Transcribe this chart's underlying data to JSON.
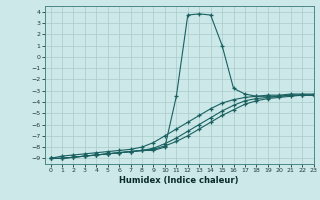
{
  "xlabel": "Humidex (Indice chaleur)",
  "bg_color": "#cce8e8",
  "grid_color": "#aacccc",
  "line_color": "#1a6060",
  "xlim": [
    -0.5,
    23
  ],
  "ylim": [
    -9.5,
    4.5
  ],
  "xticks": [
    0,
    1,
    2,
    3,
    4,
    5,
    6,
    7,
    8,
    9,
    10,
    11,
    12,
    13,
    14,
    15,
    16,
    17,
    18,
    19,
    20,
    21,
    22,
    23
  ],
  "yticks": [
    4,
    3,
    2,
    1,
    0,
    -1,
    -2,
    -3,
    -4,
    -5,
    -6,
    -7,
    -8,
    -9
  ],
  "line1_x": [
    0,
    1,
    2,
    3,
    4,
    5,
    6,
    7,
    8,
    9,
    10,
    11,
    12,
    13,
    14,
    15,
    16,
    17,
    18,
    19,
    20,
    21,
    22,
    23
  ],
  "line1_y": [
    -9.0,
    -9.0,
    -8.9,
    -8.8,
    -8.7,
    -8.6,
    -8.5,
    -8.4,
    -8.3,
    -8.3,
    -8.0,
    -3.5,
    3.7,
    3.8,
    3.7,
    1.0,
    -2.8,
    -3.3,
    -3.5,
    -3.5,
    -3.5,
    -3.4,
    -3.4,
    -3.4
  ],
  "line2_x": [
    0,
    1,
    2,
    3,
    4,
    5,
    6,
    7,
    8,
    9,
    10,
    11,
    12,
    13,
    14,
    15,
    16,
    17,
    18,
    19,
    20,
    21,
    22,
    23
  ],
  "line2_y": [
    -9.0,
    -9.0,
    -8.9,
    -8.8,
    -8.7,
    -8.6,
    -8.5,
    -8.4,
    -8.3,
    -8.2,
    -7.9,
    -7.5,
    -7.0,
    -6.4,
    -5.8,
    -5.2,
    -4.7,
    -4.2,
    -3.9,
    -3.7,
    -3.6,
    -3.5,
    -3.4,
    -3.4
  ],
  "line3_x": [
    0,
    1,
    2,
    3,
    4,
    5,
    6,
    7,
    8,
    9,
    10,
    11,
    12,
    13,
    14,
    15,
    16,
    17,
    18,
    19,
    20,
    21,
    22,
    23
  ],
  "line3_y": [
    -9.0,
    -9.0,
    -8.9,
    -8.8,
    -8.7,
    -8.6,
    -8.5,
    -8.4,
    -8.3,
    -8.1,
    -7.7,
    -7.2,
    -6.6,
    -6.0,
    -5.4,
    -4.8,
    -4.3,
    -3.9,
    -3.7,
    -3.6,
    -3.5,
    -3.4,
    -3.4,
    -3.4
  ],
  "line4_x": [
    0,
    1,
    2,
    3,
    4,
    5,
    6,
    7,
    8,
    9,
    10,
    11,
    12,
    13,
    14,
    15,
    16,
    17,
    18,
    19,
    20,
    21,
    22,
    23
  ],
  "line4_y": [
    -9.0,
    -8.8,
    -8.7,
    -8.6,
    -8.5,
    -8.4,
    -8.3,
    -8.2,
    -8.0,
    -7.6,
    -7.0,
    -6.4,
    -5.8,
    -5.2,
    -4.6,
    -4.1,
    -3.8,
    -3.6,
    -3.5,
    -3.4,
    -3.4,
    -3.3,
    -3.3,
    -3.3
  ]
}
